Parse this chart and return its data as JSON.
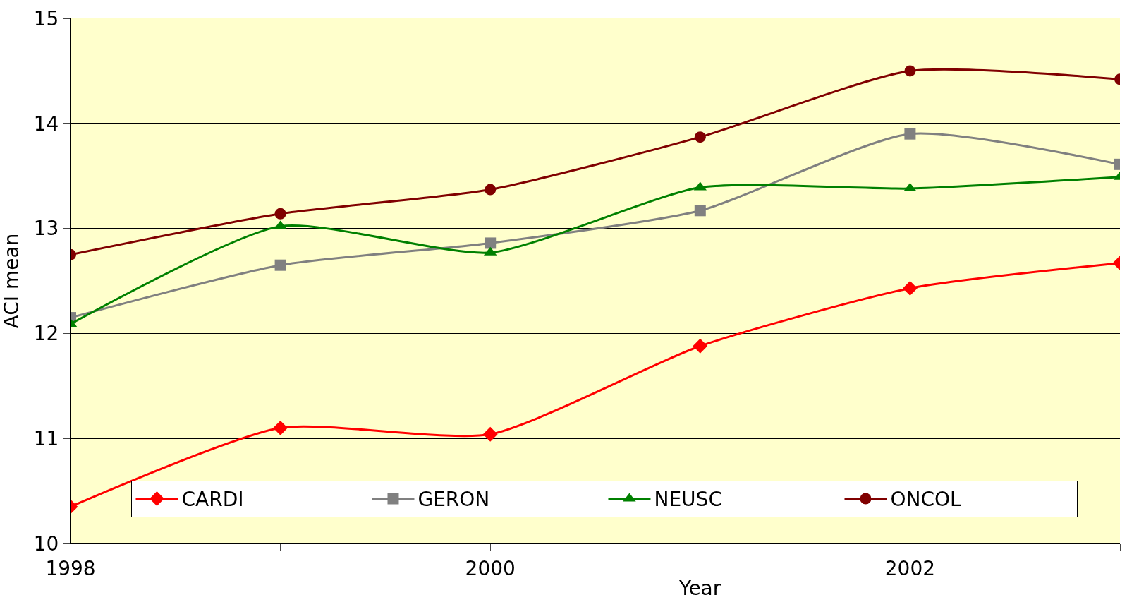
{
  "chart_data": {
    "type": "line",
    "xlabel": "Year",
    "ylabel": "ACI mean",
    "x": [
      1998,
      1999,
      2000,
      2001,
      2002,
      2003
    ],
    "series": [
      {
        "name": "CARDI",
        "color": "#ff0000",
        "marker": "diamond",
        "values": [
          10.35,
          11.1,
          11.04,
          11.88,
          12.43,
          12.67
        ]
      },
      {
        "name": "GERON",
        "color": "#808080",
        "marker": "square",
        "values": [
          12.15,
          12.65,
          12.86,
          13.17,
          13.9,
          13.61
        ]
      },
      {
        "name": "NEUSC",
        "color": "#008000",
        "marker": "triangle",
        "values": [
          12.09,
          13.02,
          12.77,
          13.39,
          13.38,
          13.49
        ]
      },
      {
        "name": "ONCOL",
        "color": "#800000",
        "marker": "circle",
        "values": [
          12.75,
          13.14,
          13.37,
          13.87,
          14.5,
          14.42
        ]
      }
    ],
    "xlim": [
      1998,
      2003
    ],
    "xticks": [
      1998,
      {
        "value": 1999,
        "label": null
      },
      2000,
      {
        "value": 2001,
        "label": null
      },
      2002,
      {
        "value": 2003,
        "label": null
      }
    ],
    "ylim": [
      10,
      15
    ],
    "yticks": [
      10,
      11,
      12,
      13,
      14,
      15
    ],
    "grid": "y",
    "legend": "bottom right",
    "line_style": "solid"
  }
}
